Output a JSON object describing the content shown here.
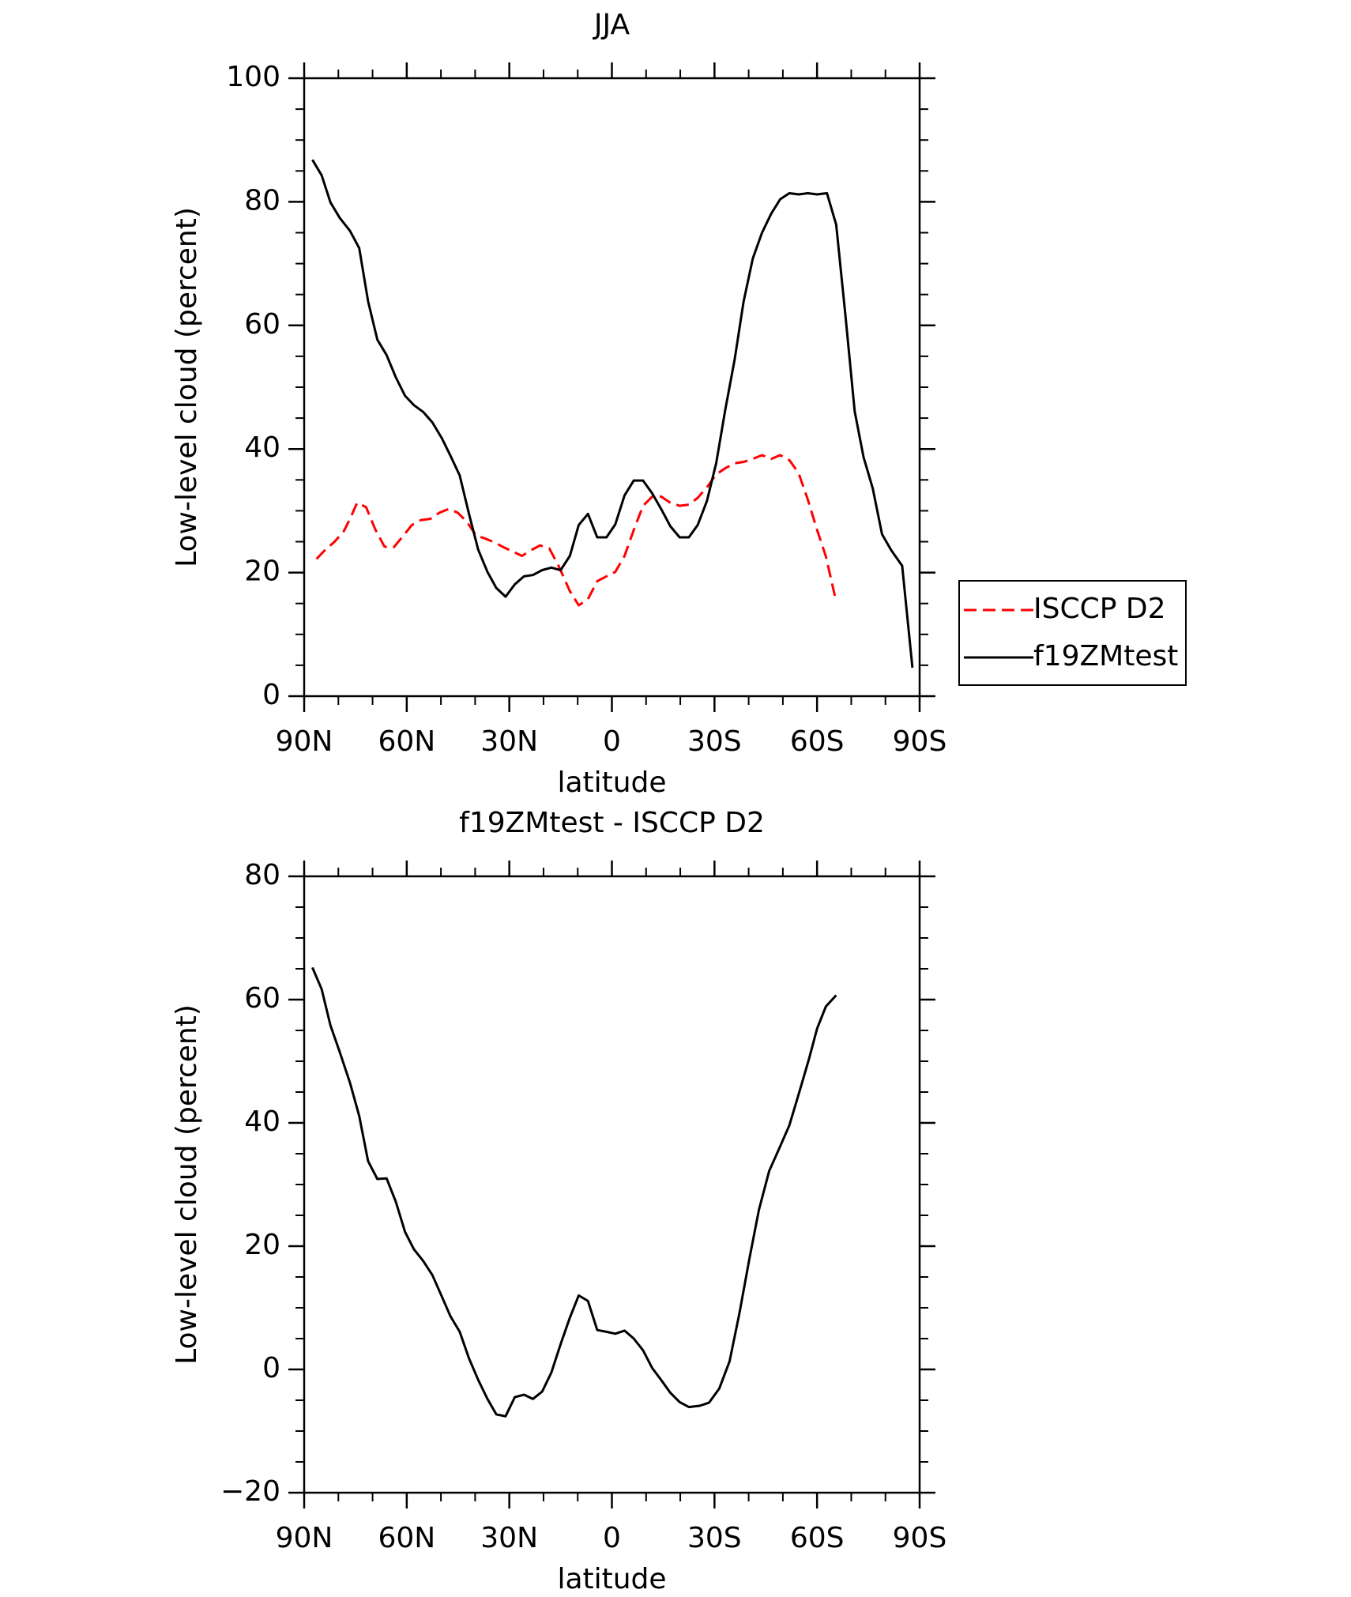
{
  "chart_data": [
    {
      "type": "line",
      "title": "JJA",
      "x_label": "latitude",
      "y_label": "Low-level cloud (percent)",
      "xlim": [
        90,
        -90
      ],
      "xticks": [
        {
          "value": 90,
          "label": "90N"
        },
        {
          "value": 60,
          "label": "60N"
        },
        {
          "value": 30,
          "label": "30N"
        },
        0,
        {
          "value": -30,
          "label": "30S"
        },
        {
          "value": -60,
          "label": "60S"
        },
        {
          "value": -90,
          "label": "90S"
        }
      ],
      "ylim": [
        0,
        100
      ],
      "yticks": [
        0,
        20,
        40,
        60,
        80,
        100
      ],
      "legend": "right",
      "series": [
        {
          "name": "ISCCP D2",
          "color": "#ff0000",
          "dash": true,
          "x": [
            86.4,
            83.8,
            81.1,
            78.4,
            76.6,
            74.5,
            71.9,
            69.2,
            66.5,
            63.8,
            61.1,
            58.5,
            55.8,
            53.1,
            50.4,
            47.7,
            45.1,
            42.4,
            39.7,
            37.0,
            34.4,
            31.7,
            29.0,
            26.3,
            23.7,
            21.0,
            18.3,
            15.6,
            12.3,
            9.7,
            7.0,
            4.3,
            1.6,
            -1.0,
            -3.7,
            -6.4,
            -9.1,
            -11.8,
            -14.4,
            -17.1,
            -19.8,
            -22.5,
            -25.1,
            -27.8,
            -30.5,
            -33.2,
            -35.9,
            -38.5,
            -41.2,
            -43.9,
            -46.6,
            -49.2,
            -51.9,
            -54.6,
            -57.3,
            -60.0,
            -62.6,
            -65.6
          ],
          "values": [
            22.2,
            23.7,
            25.0,
            26.7,
            28.7,
            31.3,
            30.6,
            27.0,
            24.2,
            24.1,
            25.9,
            27.7,
            28.5,
            28.7,
            29.7,
            30.3,
            29.7,
            28.2,
            26.0,
            25.5,
            24.9,
            24.1,
            23.4,
            22.7,
            23.6,
            24.4,
            23.9,
            21.1,
            17.0,
            14.7,
            15.7,
            18.6,
            19.4,
            20.1,
            22.7,
            26.9,
            30.8,
            32.3,
            32.3,
            31.3,
            30.8,
            31.0,
            32.1,
            33.8,
            35.9,
            36.9,
            37.7,
            37.9,
            38.4,
            39.0,
            38.4,
            39.0,
            38.2,
            36.1,
            31.8,
            26.9,
            22.6,
            15.3
          ]
        },
        {
          "name": "f19ZMtest",
          "color": "#000000",
          "dash": false,
          "x": [
            87.6,
            84.9,
            82.3,
            79.6,
            76.6,
            73.9,
            71.3,
            68.6,
            65.9,
            63.2,
            60.5,
            57.9,
            55.2,
            52.5,
            49.8,
            47.2,
            44.5,
            41.8,
            39.1,
            36.4,
            33.8,
            31.1,
            28.4,
            25.7,
            23.1,
            20.4,
            17.7,
            15.0,
            12.3,
            9.7,
            7.0,
            4.3,
            1.6,
            -1.0,
            -3.7,
            -6.4,
            -9.1,
            -11.8,
            -14.4,
            -17.1,
            -19.8,
            -22.5,
            -25.1,
            -27.8,
            -30.5,
            -33.2,
            -35.9,
            -38.5,
            -41.2,
            -43.9,
            -46.6,
            -49.2,
            -51.9,
            -54.6,
            -57.3,
            -60.0,
            -62.9,
            -65.6,
            -68.3,
            -71.0,
            -73.6,
            -76.3,
            -79.0,
            -81.7,
            -84.9,
            -87.9
          ],
          "values": [
            86.8,
            84.3,
            79.9,
            77.4,
            75.3,
            72.5,
            63.9,
            57.7,
            55.2,
            51.6,
            48.6,
            47.1,
            46.0,
            44.3,
            41.8,
            38.9,
            35.7,
            29.5,
            23.7,
            20.1,
            17.5,
            16.1,
            18.1,
            19.4,
            19.6,
            20.4,
            20.8,
            20.4,
            22.7,
            27.7,
            29.5,
            25.7,
            25.7,
            27.8,
            32.5,
            34.9,
            34.9,
            32.8,
            30.3,
            27.5,
            25.7,
            25.7,
            27.7,
            31.6,
            37.7,
            46.5,
            54.5,
            63.8,
            70.8,
            75.0,
            78.1,
            80.4,
            81.4,
            81.2,
            81.4,
            81.2,
            81.4,
            76.3,
            61.6,
            46.1,
            38.7,
            33.6,
            26.2,
            23.6,
            21.1,
            4.6
          ]
        }
      ]
    },
    {
      "type": "line",
      "title": "f19ZMtest - ISCCP D2",
      "x_label": "latitude",
      "y_label": "Low-level cloud (percent)",
      "xlim": [
        90,
        -90
      ],
      "xticks": [
        {
          "value": 90,
          "label": "90N"
        },
        {
          "value": 60,
          "label": "60N"
        },
        {
          "value": 30,
          "label": "30N"
        },
        0,
        {
          "value": -30,
          "label": "30S"
        },
        {
          "value": -60,
          "label": "60S"
        },
        {
          "value": -90,
          "label": "90S"
        }
      ],
      "ylim": [
        -20,
        80
      ],
      "yticks": [
        {
          "value": -20,
          "label": "−20"
        },
        0,
        20,
        40,
        60,
        80
      ],
      "series": [
        {
          "color": "#000000",
          "dash": false,
          "x": [
            87.6,
            84.9,
            82.3,
            79.6,
            76.6,
            73.9,
            71.3,
            68.6,
            65.9,
            63.2,
            60.5,
            57.9,
            55.2,
            52.5,
            49.8,
            47.2,
            44.5,
            41.8,
            39.1,
            36.4,
            33.8,
            31.1,
            28.4,
            25.7,
            23.1,
            20.4,
            17.7,
            15.0,
            12.3,
            9.7,
            7.0,
            4.3,
            1.6,
            -1.0,
            -3.7,
            -6.4,
            -9.1,
            -11.8,
            -14.4,
            -17.1,
            -19.8,
            -22.5,
            -25.7,
            -28.4,
            -31.4,
            -34.4,
            -37.3,
            -40.3,
            -43.0,
            -46.0,
            -48.9,
            -51.9,
            -54.6,
            -57.6,
            -60.0,
            -62.6,
            -65.6
          ],
          "values": [
            65.2,
            61.7,
            55.8,
            51.5,
            46.5,
            41.1,
            33.8,
            30.9,
            31.0,
            27.2,
            22.3,
            19.5,
            17.6,
            15.3,
            11.9,
            8.6,
            6.1,
            1.8,
            -1.7,
            -4.8,
            -7.3,
            -7.6,
            -4.5,
            -4.1,
            -4.8,
            -3.6,
            -0.5,
            4.1,
            8.4,
            12.0,
            11.1,
            6.4,
            6.1,
            5.8,
            6.3,
            5.0,
            3.1,
            0.2,
            -1.7,
            -3.8,
            -5.3,
            -6.1,
            -5.9,
            -5.4,
            -3.1,
            1.3,
            9.1,
            18.2,
            25.9,
            32.2,
            35.8,
            39.6,
            44.6,
            50.3,
            55.3,
            58.9,
            60.7
          ]
        }
      ]
    }
  ]
}
